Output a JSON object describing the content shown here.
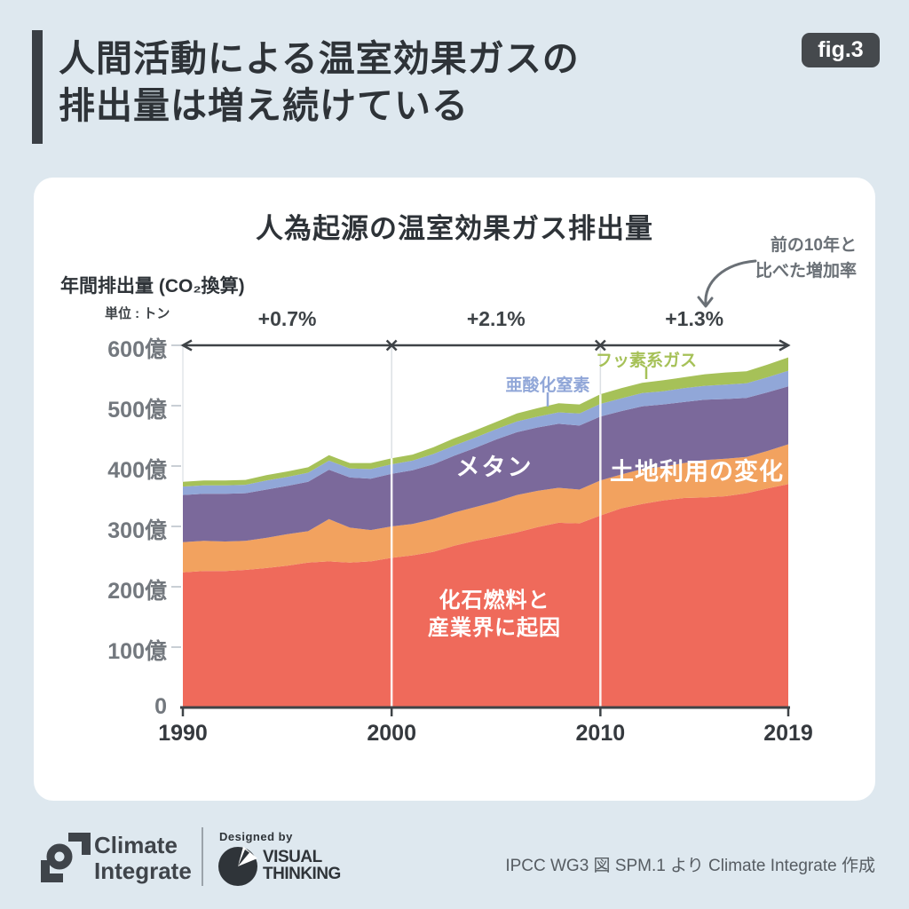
{
  "header": {
    "title_line1": "人間活動による温室効果ガスの",
    "title_line2": "排出量は増え続けている",
    "figure_tag": "fig.3"
  },
  "chart_data": {
    "type": "area",
    "stacked": true,
    "title": "人為起源の温室効果ガス排出量",
    "ylabel": "年間排出量 (CO₂換算)",
    "unit_label": "単位 : トン",
    "ylim": [
      0,
      600
    ],
    "grid": "vertical decade lines at 2000 and 2010",
    "legend_position": "inline labels on areas",
    "annotation": {
      "line1": "前の10年と",
      "line2": "比べた増加率"
    },
    "decade_growth_labels": [
      "+0.7%",
      "+2.1%",
      "+1.3%"
    ],
    "y_ticks": [
      {
        "label": "600億",
        "value": 600
      },
      {
        "label": "500億",
        "value": 500
      },
      {
        "label": "400億",
        "value": 400
      },
      {
        "label": "300億",
        "value": 300
      },
      {
        "label": "200億",
        "value": 200
      },
      {
        "label": "100億",
        "value": 100
      },
      {
        "label": "0",
        "value": 0
      }
    ],
    "x_ticks": [
      {
        "label": "1990",
        "year": 1990
      },
      {
        "label": "2000",
        "year": 2000
      },
      {
        "label": "2010",
        "year": 2010
      },
      {
        "label": "2019",
        "year": 2019
      }
    ],
    "decade_line_years": [
      2000,
      2010
    ],
    "x": [
      1990,
      1991,
      1992,
      1993,
      1994,
      1995,
      1996,
      1997,
      1998,
      1999,
      2000,
      2001,
      2002,
      2003,
      2004,
      2005,
      2006,
      2007,
      2008,
      2009,
      2010,
      2011,
      2012,
      2013,
      2014,
      2015,
      2016,
      2017,
      2018,
      2019
    ],
    "series": [
      {
        "id": "fossil_industry",
        "label": "化石燃料と産業界に起因",
        "label_line1": "化石燃料と",
        "label_line2": "産業界に起因",
        "color": "#EF6A5B",
        "values": [
          224,
          226,
          226,
          228,
          231,
          235,
          240,
          242,
          240,
          242,
          248,
          252,
          258,
          268,
          276,
          283,
          290,
          299,
          306,
          305,
          318,
          330,
          337,
          343,
          347,
          348,
          350,
          355,
          363,
          370
        ]
      },
      {
        "id": "land_use_change",
        "label": "土地利用の変化",
        "color": "#F2A25F",
        "values": [
          50,
          50,
          49,
          48,
          50,
          52,
          52,
          70,
          58,
          52,
          52,
          52,
          54,
          55,
          56,
          58,
          62,
          60,
          58,
          56,
          58,
          56,
          58,
          56,
          58,
          62,
          62,
          60,
          62,
          66
        ]
      },
      {
        "id": "methane",
        "label": "メタン",
        "color": "#7B699B",
        "values": [
          78,
          78,
          79,
          79,
          80,
          80,
          82,
          82,
          83,
          85,
          87,
          89,
          91,
          94,
          98,
          103,
          104,
          105,
          106,
          106,
          106,
          105,
          104,
          103,
          101,
          100,
          99,
          98,
          97,
          96
        ]
      },
      {
        "id": "nitrous_oxide",
        "label": "亜酸化窒素",
        "color": "#91A7D8",
        "values": [
          14,
          14,
          14,
          14,
          15,
          15,
          15,
          15,
          15,
          16,
          16,
          16,
          17,
          17,
          17,
          17,
          18,
          18,
          19,
          20,
          21,
          21,
          22,
          22,
          23,
          23,
          24,
          24,
          25,
          26
        ]
      },
      {
        "id": "f_gases",
        "label": "フッ素系ガス",
        "color": "#A6C158",
        "values": [
          8,
          8,
          8,
          8,
          9,
          9,
          9,
          9,
          9,
          10,
          10,
          10,
          11,
          12,
          12,
          12,
          13,
          14,
          15,
          15,
          16,
          17,
          17,
          18,
          18,
          19,
          20,
          20,
          21,
          22
        ]
      }
    ]
  },
  "colors": {
    "background": "#DEE8EF",
    "card": "#FFFFFF",
    "axis_dark": "#3E4347",
    "badge": "#45494D",
    "muted_gray": "#6A7076"
  },
  "footer": {
    "brand_line1": "Climate",
    "brand_line2": "Integrate",
    "designed_by": "Designed by",
    "designer_line1": "VISUAL",
    "designer_line2": "THINKING",
    "attribution": "IPCC WG3 図 SPM.1 より Climate Integrate 作成"
  }
}
